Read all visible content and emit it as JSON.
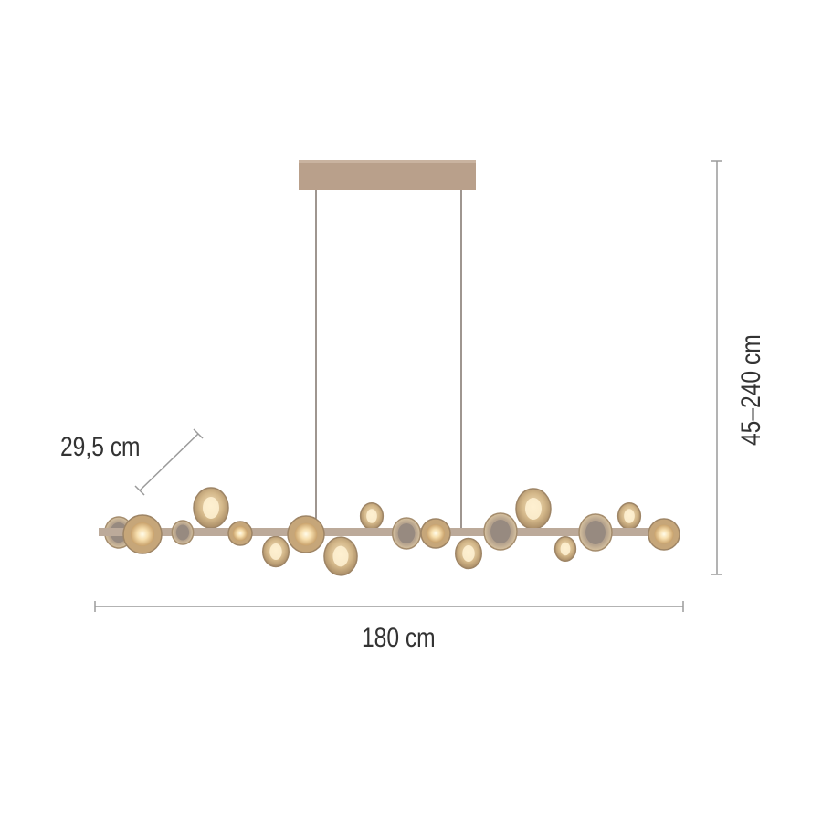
{
  "dimensions": {
    "depth_label": "29,5 cm",
    "width_label": "180 cm",
    "height_label": "45–240 cm"
  },
  "colors": {
    "dimension_line": "#9a9a9a",
    "metal": "#b8a596",
    "glass": "#c9ac7e",
    "glow": "#fff3d6"
  }
}
